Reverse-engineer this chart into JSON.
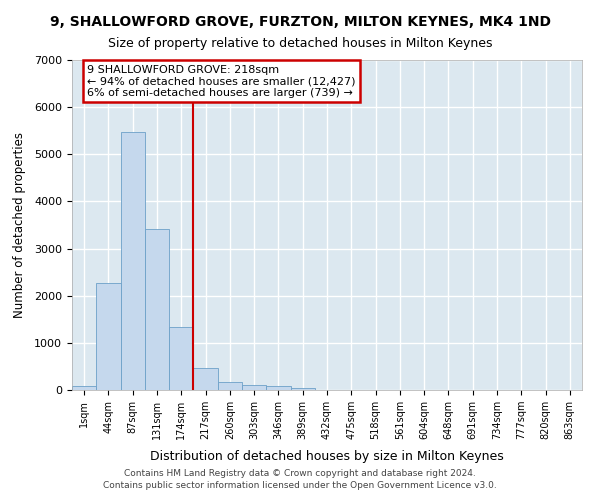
{
  "title1": "9, SHALLOWFORD GROVE, FURZTON, MILTON KEYNES, MK4 1ND",
  "title2": "Size of property relative to detached houses in Milton Keynes",
  "xlabel": "Distribution of detached houses by size in Milton Keynes",
  "ylabel": "Number of detached properties",
  "bin_labels": [
    "1sqm",
    "44sqm",
    "87sqm",
    "131sqm",
    "174sqm",
    "217sqm",
    "260sqm",
    "303sqm",
    "346sqm",
    "389sqm",
    "432sqm",
    "475sqm",
    "518sqm",
    "561sqm",
    "604sqm",
    "648sqm",
    "691sqm",
    "734sqm",
    "777sqm",
    "820sqm",
    "863sqm"
  ],
  "bar_values": [
    80,
    2270,
    5480,
    3420,
    1340,
    460,
    180,
    105,
    75,
    50,
    0,
    0,
    0,
    0,
    0,
    0,
    0,
    0,
    0,
    0,
    0
  ],
  "bar_color": "#c5d8ed",
  "bar_edge_color": "#6ca0c8",
  "property_line_bin_index": 5,
  "annotation_line1": "9 SHALLOWFORD GROVE: 218sqm",
  "annotation_line2": "← 94% of detached houses are smaller (12,427)",
  "annotation_line3": "6% of semi-detached houses are larger (739) →",
  "annotation_box_edgecolor": "#cc0000",
  "red_line_color": "#cc0000",
  "ylim": [
    0,
    7000
  ],
  "yticks": [
    0,
    1000,
    2000,
    3000,
    4000,
    5000,
    6000,
    7000
  ],
  "plot_bg_color": "#dce8f0",
  "fig_bg_color": "#ffffff",
  "grid_color": "#ffffff",
  "footer1": "Contains HM Land Registry data © Crown copyright and database right 2024.",
  "footer2": "Contains public sector information licensed under the Open Government Licence v3.0."
}
